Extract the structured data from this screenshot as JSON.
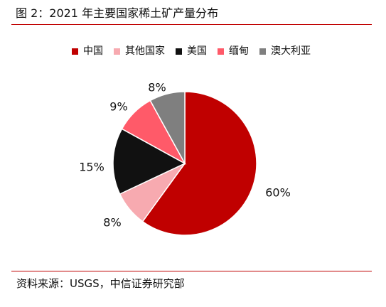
{
  "header": {
    "title": "图 2：2021 年主要国家稀土矿产量分布"
  },
  "chart_data": {
    "type": "pie",
    "title": "",
    "series": [
      {
        "name": "中国",
        "value": 60,
        "label": "60%",
        "color": "#C00000"
      },
      {
        "name": "其他国家",
        "value": 8,
        "label": "8%",
        "color": "#F7AAB0"
      },
      {
        "name": "美国",
        "value": 15,
        "label": "15%",
        "color": "#111111"
      },
      {
        "name": "缅甸",
        "value": 9,
        "label": "9%",
        "color": "#FF5A69"
      },
      {
        "name": "澳大利亚",
        "value": 8,
        "label": "8%",
        "color": "#7F7F7F"
      }
    ],
    "legend": {
      "position": "top"
    }
  },
  "footer": {
    "source": "资料来源：USGS，中信证券研究部"
  }
}
